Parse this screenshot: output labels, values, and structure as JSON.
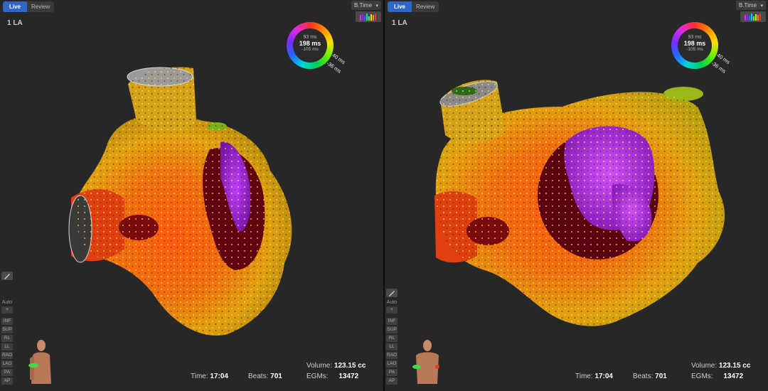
{
  "panes": [
    {
      "tabs": {
        "live": "Live",
        "review": "Review"
      },
      "map_title": "1 LA",
      "btime": "B.Time",
      "ring": {
        "top": "93 ms",
        "mid": "198 ms",
        "bot": "-105 ms",
        "label1": "40 ms",
        "label2": "-36 ms"
      },
      "views": [
        "Auto",
        "+",
        "INF",
        "SUP",
        "RL",
        "LL",
        "RAO",
        "LAO",
        "PA",
        "AP"
      ],
      "time_label": "Time:",
      "time_value": "17:04",
      "beats_label": "Beats:",
      "beats_value": "701",
      "volume_label": "Volume:",
      "volume_value": "123.15 cc",
      "egms_label": "EGMs:",
      "egms_value": "13472"
    },
    {
      "tabs": {
        "live": "Live",
        "review": "Review"
      },
      "map_title": "1 LA",
      "btime": "B.Time",
      "ring": {
        "top": "93 ms",
        "mid": "198 ms",
        "bot": "-105 ms",
        "label1": "40 ms",
        "label2": "-36 ms"
      },
      "views": [
        "Auto",
        "+",
        "INF",
        "SUP",
        "RL",
        "LL",
        "RAO",
        "LAO",
        "PA",
        "AP"
      ],
      "time_label": "Time:",
      "time_value": "17:04",
      "beats_label": "Beats:",
      "beats_value": "701",
      "volume_label": "Volume:",
      "volume_value": "123.15 cc",
      "egms_label": "EGMs:",
      "egms_value": "13472"
    }
  ],
  "colors": {
    "accent": "#2f67c8",
    "background": "#272727"
  }
}
